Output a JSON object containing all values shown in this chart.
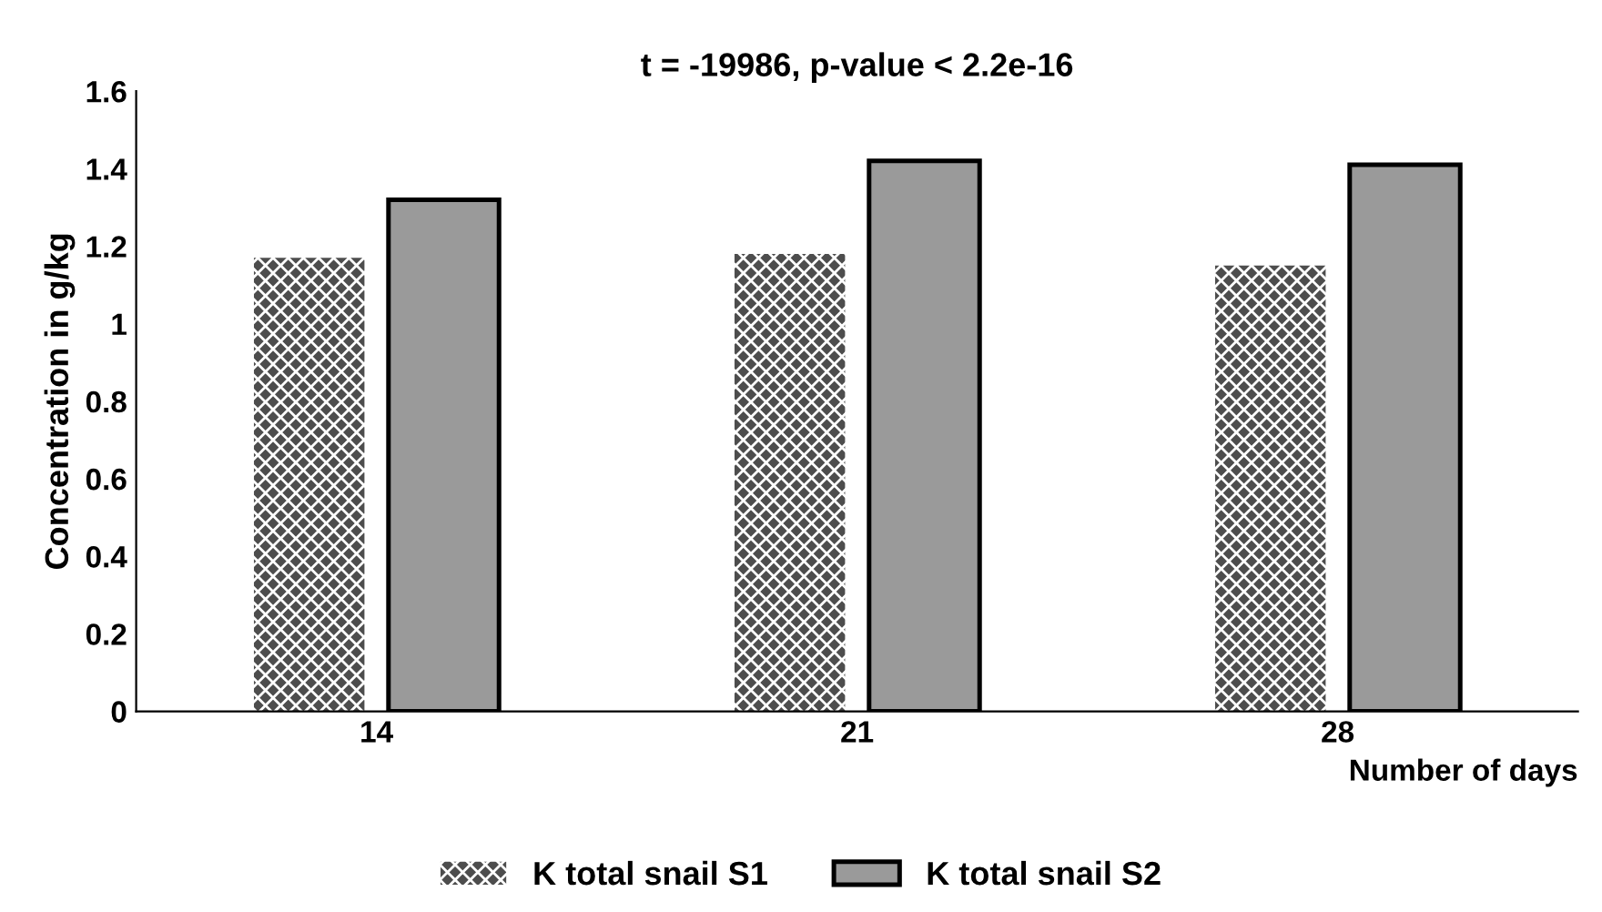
{
  "chart_data": {
    "type": "bar",
    "title": "t = -19986, p-value < 2.2e-16",
    "xlabel": "Number of days",
    "ylabel": "Concentration in g/kg",
    "categories": [
      "14",
      "21",
      "28"
    ],
    "series": [
      {
        "name": "K total snail S1",
        "color": "#4d4d4d",
        "values": [
          1.17,
          1.18,
          1.15
        ]
      },
      {
        "name": "K total snail S2",
        "color": "#9a9a9a",
        "values": [
          1.32,
          1.42,
          1.41
        ]
      }
    ],
    "ylim": [
      0,
      1.6
    ],
    "yticks": [
      0,
      0.2,
      0.4,
      0.6,
      0.8,
      1,
      1.2,
      1.4,
      1.6
    ],
    "grid": false,
    "legend": "bottom"
  }
}
